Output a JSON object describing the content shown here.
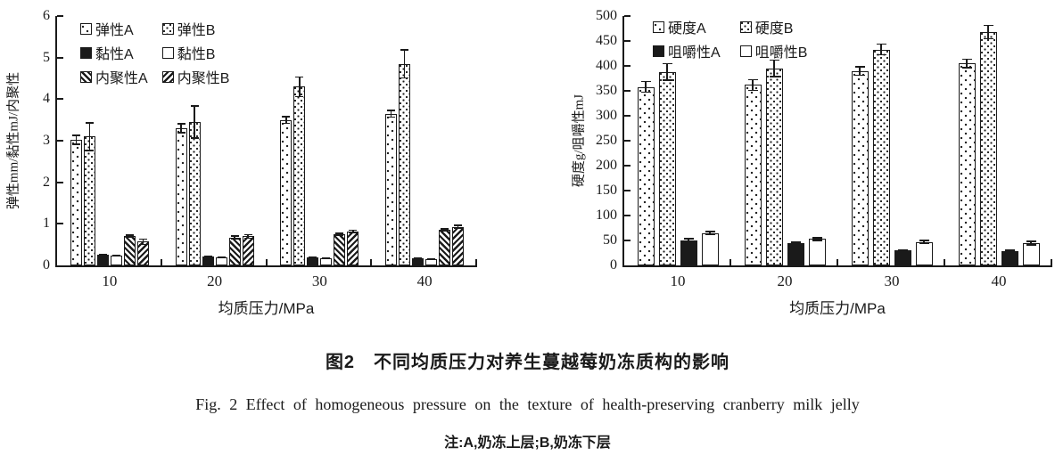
{
  "colors": {
    "ink": "#1a1a1a",
    "background": "#ffffff"
  },
  "figure": {
    "caption_zh": "图2　不同均质压力对养生蔓越莓奶冻质构的影响",
    "caption_en": "Fig. 2  Effect of homogeneous pressure on the texture of health-preserving cranberry milk jelly",
    "note": "注:A,奶冻上层;B,奶冻下层"
  },
  "chart_data": [
    {
      "type": "bar",
      "title": "",
      "xlabel": "均质压力/MPa",
      "ylabel": "弹性mm/黏性mJ/内聚性",
      "ylim": [
        0,
        6
      ],
      "yticks": [
        0,
        1,
        2,
        3,
        4,
        5,
        6
      ],
      "grid": false,
      "legend_position": "top-left-inside",
      "categories": [
        "10",
        "20",
        "30",
        "40"
      ],
      "series": [
        {
          "name": "弹性A",
          "pattern": "dots-sparse",
          "values": [
            3.02,
            3.3,
            3.5,
            3.65
          ],
          "errors": [
            0.12,
            0.12,
            0.1,
            0.1
          ]
        },
        {
          "name": "弹性B",
          "pattern": "dots-dense",
          "values": [
            3.1,
            3.45,
            4.3,
            4.85
          ],
          "errors": [
            0.35,
            0.4,
            0.25,
            0.35
          ]
        },
        {
          "name": "黏性A",
          "pattern": "solid",
          "values": [
            0.25,
            0.22,
            0.2,
            0.17
          ],
          "errors": [
            0.02,
            0.02,
            0.02,
            0.02
          ]
        },
        {
          "name": "黏性B",
          "pattern": "white",
          "values": [
            0.24,
            0.2,
            0.17,
            0.15
          ],
          "errors": [
            0.02,
            0.02,
            0.02,
            0.02
          ]
        },
        {
          "name": "内聚性A",
          "pattern": "hatch-back",
          "values": [
            0.7,
            0.67,
            0.75,
            0.85
          ],
          "errors": [
            0.04,
            0.05,
            0.04,
            0.04
          ]
        },
        {
          "name": "内聚性B",
          "pattern": "hatch-fwd",
          "values": [
            0.57,
            0.7,
            0.82,
            0.93
          ],
          "errors": [
            0.08,
            0.06,
            0.04,
            0.05
          ]
        }
      ]
    },
    {
      "type": "bar",
      "title": "",
      "xlabel": "均质压力/MPa",
      "ylabel": "硬度g/咀嚼性mJ",
      "ylim": [
        0,
        500
      ],
      "yticks": [
        0,
        50,
        100,
        150,
        200,
        250,
        300,
        350,
        400,
        450,
        500
      ],
      "grid": false,
      "legend_position": "top-left-inside",
      "categories": [
        "10",
        "20",
        "30",
        "40"
      ],
      "series": [
        {
          "name": "硬度A",
          "pattern": "dots-sparse",
          "values": [
            358,
            362,
            390,
            405
          ],
          "errors": [
            12,
            12,
            10,
            10
          ]
        },
        {
          "name": "硬度B",
          "pattern": "dots-dense",
          "values": [
            388,
            395,
            433,
            468
          ],
          "errors": [
            18,
            18,
            12,
            15
          ]
        },
        {
          "name": "咀嚼性A",
          "pattern": "solid",
          "values": [
            50,
            44,
            30,
            28
          ],
          "errors": [
            5,
            4,
            3,
            4
          ]
        },
        {
          "name": "咀嚼性B",
          "pattern": "white",
          "values": [
            65,
            53,
            47,
            45
          ],
          "errors": [
            4,
            4,
            4,
            5
          ]
        }
      ]
    }
  ]
}
